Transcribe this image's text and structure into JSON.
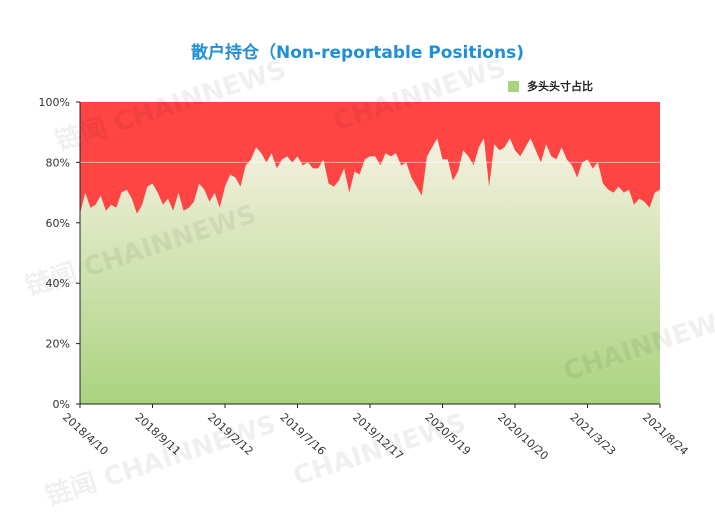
{
  "chart_data": {
    "type": "area",
    "title": "散户持仓（Non-reportable Positions)",
    "legend": [
      {
        "name": "多头头寸占比",
        "color": "#a9d37f"
      }
    ],
    "legend_position": "top-right",
    "colors": {
      "long_fill_top": "#f6f1e1",
      "long_fill_bottom": "#a9d37f",
      "remainder_fill": "#ff4444"
    },
    "yticks": [
      "0%",
      "20%",
      "40%",
      "60%",
      "80%",
      "100%"
    ],
    "ylim": [
      0,
      100
    ],
    "grid": "horizontal at 80%",
    "xticks": [
      "2018/4/10",
      "2018/9/11",
      "2019/2/12",
      "2019/7/16",
      "2019/12/17",
      "2020/5/19",
      "2020/10/20",
      "2021/3/23",
      "2021/8/24"
    ],
    "series": [
      {
        "name": "多头头寸占比",
        "x_start": "2018/4/10",
        "x_end": "2021/8/24",
        "values": [
          63,
          70,
          65,
          66,
          69,
          64,
          66,
          65,
          70,
          71,
          68,
          63,
          66,
          72,
          73,
          70,
          66,
          68,
          64,
          70,
          64,
          65,
          67,
          73,
          71,
          67,
          70,
          65,
          72,
          76,
          75,
          72,
          79,
          81,
          85,
          83,
          80,
          83,
          78,
          81,
          82,
          80,
          82,
          79,
          80,
          78,
          78,
          81,
          73,
          72,
          74,
          78,
          70,
          77,
          76,
          81,
          82,
          82,
          79,
          83,
          82,
          83,
          79,
          80,
          75,
          72,
          69,
          82,
          85,
          88,
          81,
          81,
          74,
          77,
          84,
          82,
          79,
          85,
          88,
          72,
          86,
          84,
          85,
          88,
          84,
          82,
          85,
          88,
          84,
          80,
          86,
          82,
          81,
          85,
          81,
          79,
          75,
          80,
          81,
          78,
          80,
          73,
          71,
          70,
          72,
          70,
          71,
          66,
          68,
          67,
          65,
          70,
          71
        ]
      }
    ]
  },
  "watermarks": [
    "链闻 CHAINNEWS",
    "CHAINNEWS",
    "链闻 CHAINNEWS",
    "CHAINNEWS",
    "链闻 CHAINNEWS",
    "CHAINNEWS"
  ]
}
